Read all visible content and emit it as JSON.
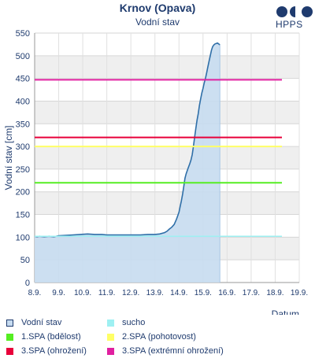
{
  "header": {
    "title": "Krnov (Opava)",
    "subtitle": "Vodní stav",
    "logo_text": "HPPS"
  },
  "colors": {
    "series_line": "#2f6fa8",
    "series_fill": "#c6dbf0",
    "text": "#1f3b6e"
  },
  "chart_data": {
    "type": "area",
    "title": "Krnov (Opava)",
    "subtitle": "Vodní stav",
    "xlabel": "Datum",
    "ylabel": "Vodní stav [cm]",
    "x_tick_labels": [
      "8.9.",
      "9.9.",
      "10.9.",
      "11.9.",
      "12.9.",
      "13.9.",
      "14.9.",
      "15.9.",
      "16.9.",
      "17.9.",
      "18.9.",
      "19.9."
    ],
    "xlim": [
      0,
      11
    ],
    "ylim": [
      0,
      550
    ],
    "yticks": [
      0,
      50,
      100,
      150,
      200,
      250,
      300,
      350,
      400,
      450,
      500,
      550
    ],
    "grid": true,
    "series": [
      {
        "name": "Vodní stav",
        "x": [
          0,
          0.1,
          0.2,
          0.4,
          0.6,
          0.8,
          1.0,
          1.3,
          1.6,
          1.9,
          2.2,
          2.5,
          2.8,
          3.0,
          3.2,
          3.5,
          3.8,
          4.1,
          4.4,
          4.7,
          5.0,
          5.2,
          5.4,
          5.5,
          5.6,
          5.7,
          5.8,
          5.9,
          6.0,
          6.05,
          6.1,
          6.15,
          6.2,
          6.25,
          6.3,
          6.35,
          6.4,
          6.45,
          6.5,
          6.55,
          6.6,
          6.65,
          6.7,
          6.75,
          6.8,
          6.85,
          6.9,
          6.95,
          7.0,
          7.05,
          7.1,
          7.15,
          7.2,
          7.25,
          7.3,
          7.35,
          7.4,
          7.45,
          7.5,
          7.55,
          7.6,
          7.65,
          7.7
        ],
        "y": [
          102,
          101,
          102,
          101,
          102,
          101,
          103,
          104,
          105,
          106,
          107,
          106,
          106,
          105,
          105,
          105,
          105,
          105,
          105,
          106,
          106,
          107,
          110,
          113,
          118,
          122,
          128,
          140,
          155,
          168,
          180,
          195,
          212,
          230,
          240,
          248,
          255,
          262,
          270,
          282,
          300,
          320,
          340,
          358,
          372,
          390,
          405,
          418,
          428,
          440,
          450,
          462,
          475,
          488,
          500,
          512,
          520,
          524,
          526,
          527,
          528,
          526,
          524
        ]
      }
    ],
    "thresholds": [
      {
        "name": "sucho",
        "value": 102,
        "color": "#9ef0f2"
      },
      {
        "name": "1.SPA (bdělost)",
        "value": 220,
        "color": "#55ee22"
      },
      {
        "name": "2.SPA (pohotovost)",
        "value": 300,
        "color": "#ffff66"
      },
      {
        "name": "3.SPA (ohrožení)",
        "value": 320,
        "color": "#e8003a"
      },
      {
        "name": "3.SPA (extrémní ohrožení)",
        "value": 447,
        "color": "#e020a0"
      }
    ]
  },
  "legend": [
    {
      "label": "Vodní stav",
      "color": "#c6dbf0",
      "border": "#1f3b6e"
    },
    {
      "label": "sucho",
      "color": "#9ef0f2",
      "border": ""
    },
    {
      "label": "1.SPA (bdělost)",
      "color": "#55ee22",
      "border": ""
    },
    {
      "label": "2.SPA (pohotovost)",
      "color": "#ffff66",
      "border": ""
    },
    {
      "label": "3.SPA (ohrožení)",
      "color": "#e8003a",
      "border": ""
    },
    {
      "label": "3.SPA (extrémní ohrožení)",
      "color": "#e020a0",
      "border": ""
    }
  ]
}
